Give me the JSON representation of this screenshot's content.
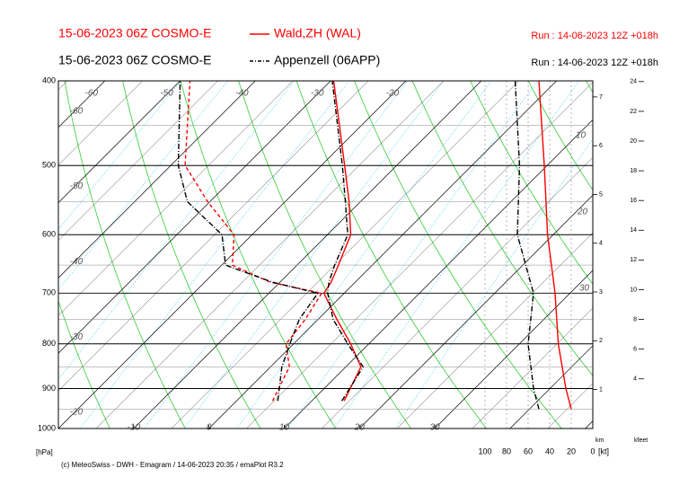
{
  "chart_data": {
    "type": "emagram",
    "series": [
      {
        "name": "Wald,ZH (WAL)",
        "model": "15-06-2023 06Z COSMO-E",
        "run": "Run : 14-06-2023 12Z +018h",
        "color": "#ff0000",
        "dash": "solid",
        "pressure": [
          930,
          850,
          800,
          750,
          700,
          680,
          650,
          600,
          550,
          500,
          400
        ],
        "temperature": [
          14.3,
          12.0,
          7.6,
          2.5,
          -2.7,
          -3.2,
          -4.5,
          -6.9,
          -11.5,
          -16.9,
          -29.6
        ],
        "dewpoint": [
          4.8,
          2.5,
          -1.0,
          -1.7,
          -3.0,
          -11.3,
          -18.6,
          -22.4,
          -30.3,
          -38.1,
          -48.7
        ],
        "wind_pressure": [
          950,
          900,
          800,
          700,
          600,
          500,
          400
        ],
        "wind_speed": [
          20,
          25,
          32,
          35,
          42,
          45,
          50
        ]
      },
      {
        "name": "Appenzell (06APP)",
        "model": "15-06-2023 06Z COSMO-E",
        "run": "Run : 14-06-2023 12Z +018h",
        "color": "#000000",
        "dash": "dashdot",
        "pressure": [
          930,
          850,
          800,
          750,
          700,
          680,
          650,
          600,
          550,
          500,
          400
        ],
        "temperature": [
          14.0,
          12.3,
          7.2,
          2.0,
          -2.2,
          -3.5,
          -5.0,
          -7.3,
          -12.0,
          -17.2,
          -29.8
        ],
        "dewpoint": [
          5.5,
          1.5,
          -0.5,
          -2.5,
          -3.5,
          -11,
          -19.5,
          -24,
          -33,
          -39,
          -50
        ],
        "wind_pressure": [
          950,
          900,
          800,
          700,
          600,
          500,
          400
        ],
        "wind_speed": [
          50,
          55,
          60,
          55,
          70,
          68,
          72
        ]
      }
    ],
    "ylim": [
      1000,
      400
    ],
    "log": true,
    "yticks": [
      400,
      500,
      600,
      700,
      800,
      900,
      1000
    ],
    "ylabel": "[hPa]",
    "xlim": [
      -20,
      51
    ],
    "xticks": [
      -10,
      0,
      10,
      20,
      30
    ],
    "isotherm_labels": [
      -60,
      -50,
      -40,
      -30,
      -20
    ],
    "wind_xlim": [
      100,
      0
    ],
    "wind_xticks": [
      100,
      80,
      60,
      40,
      20,
      0
    ],
    "wind_unit": "[kt]",
    "km_lim": [
      0.2,
      7.33
    ],
    "km_ticks": [
      1,
      2,
      3,
      4,
      5,
      6,
      7
    ],
    "km_label": "km",
    "kfeet_lim": [
      0.66,
      24.05
    ],
    "kfeet_ticks": [
      4,
      6,
      8,
      10,
      12,
      14,
      16,
      18,
      20,
      22,
      24
    ],
    "kfeet_label": "kfeet",
    "annotations": [
      "10",
      "20",
      "30"
    ],
    "footer": "(c) MeteoSwiss - DWH - Emagram / 14-06-2023 20:35 / emaPlot R3.2"
  }
}
